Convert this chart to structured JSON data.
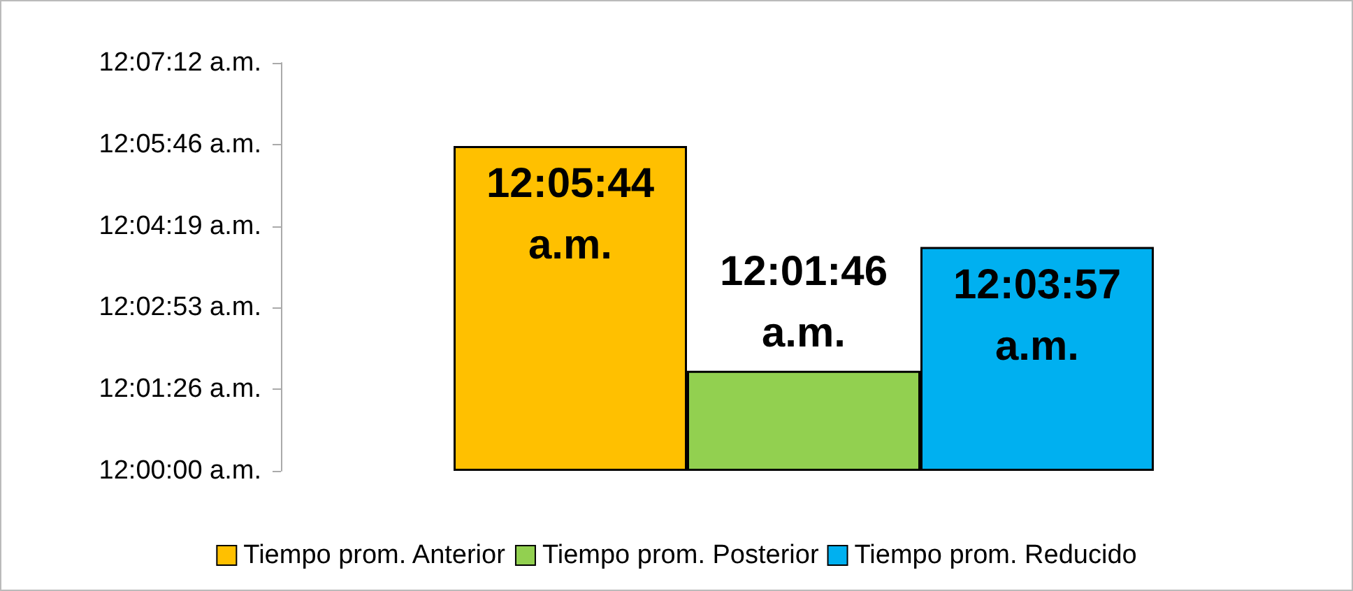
{
  "chart_data": {
    "type": "bar",
    "categories": [
      null
    ],
    "series": [
      {
        "name": "Tiempo prom. Anterior",
        "color": "#ffc000",
        "values": [
          0.095556
        ],
        "value_labels": [
          "12:05:44 a.m."
        ]
      },
      {
        "name": "Tiempo prom. Posterior",
        "color": "#92d050",
        "values": [
          0.029444
        ],
        "value_labels": [
          "12:01:46 a.m."
        ]
      },
      {
        "name": "Tiempo prom. Reducido",
        "color": "#00b0f0",
        "values": [
          0.065833
        ],
        "value_labels": [
          "12:03:57 a.m."
        ]
      }
    ],
    "ylim": [
      0,
      0.12
    ],
    "yticks": [
      {
        "value": 0,
        "label": "12:00:00 a.m."
      },
      {
        "value": 0.024,
        "label": "12:01:26 a.m."
      },
      {
        "value": 0.048,
        "label": "12:02:53 a.m."
      },
      {
        "value": 0.072,
        "label": "12:04:19 a.m."
      },
      {
        "value": 0.096,
        "label": "12:05:46 a.m."
      },
      {
        "value": 0.12,
        "label": "12:07:12 a.m."
      }
    ],
    "grid": false,
    "legend": "bottom"
  }
}
